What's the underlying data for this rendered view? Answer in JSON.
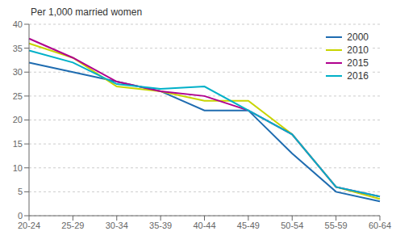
{
  "chart_data": {
    "type": "line",
    "y_label": "Per 1,000 married women",
    "categories": [
      "20-24",
      "25-29",
      "30-34",
      "35-39",
      "40-44",
      "45-49",
      "50-54",
      "55-59",
      "60-64"
    ],
    "series": [
      {
        "name": "2000",
        "color": "#1f6cb0",
        "values": [
          32,
          30,
          28,
          26,
          22,
          22,
          13,
          5,
          3
        ]
      },
      {
        "name": "2010",
        "color": "#c8d400",
        "values": [
          36,
          33,
          27,
          26,
          24,
          24,
          17,
          6,
          3.5
        ]
      },
      {
        "name": "2015",
        "color": "#b0008e",
        "values": [
          37,
          33,
          28,
          26,
          25,
          22,
          17,
          6,
          4
        ]
      },
      {
        "name": "2016",
        "color": "#00b0c8",
        "values": [
          34.5,
          32,
          27.5,
          26.5,
          27,
          22,
          17,
          6,
          4
        ]
      }
    ],
    "ylim": [
      0,
      40
    ],
    "yticks": [
      0,
      5,
      10,
      15,
      20,
      25,
      30,
      35,
      40
    ],
    "grid": true,
    "legend": "upper right"
  }
}
